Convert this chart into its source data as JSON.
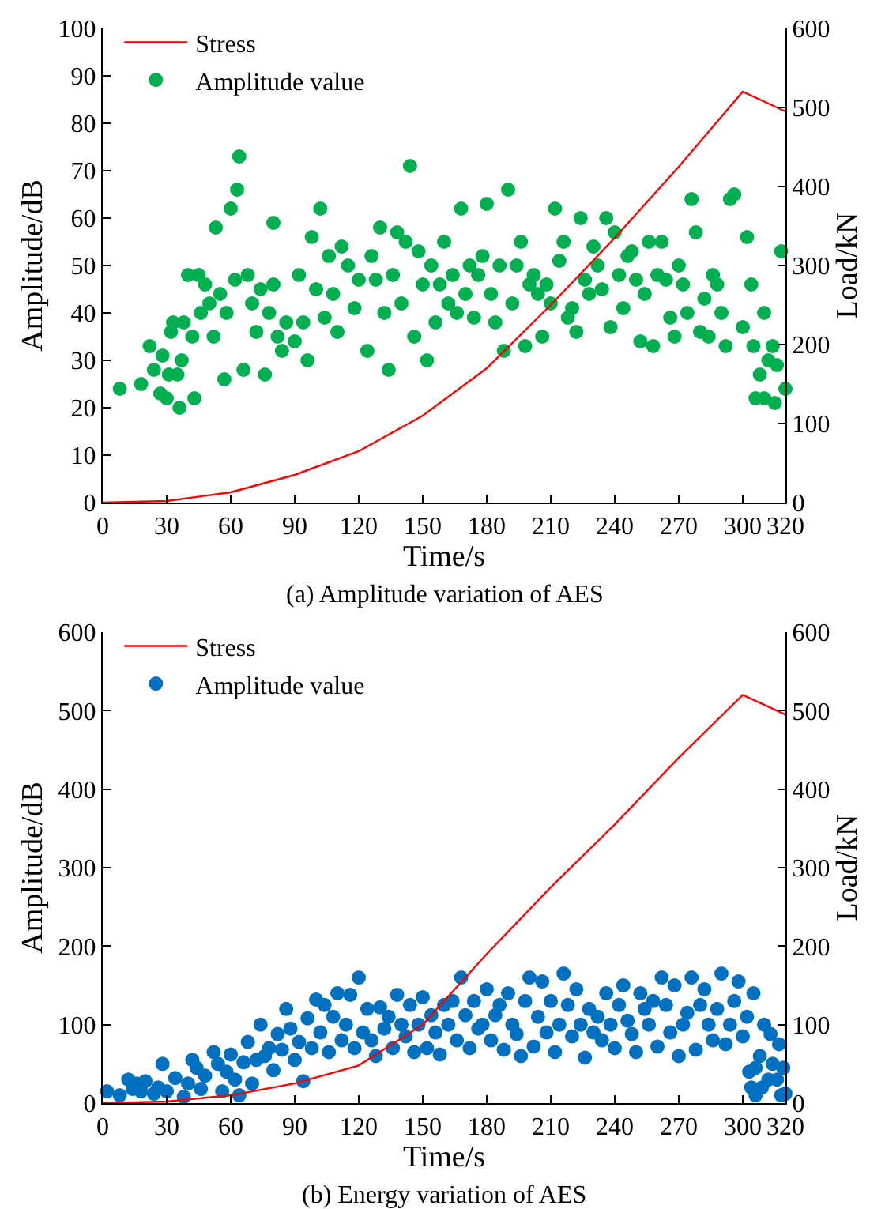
{
  "chart_data": [
    {
      "type": "scatter",
      "title": "(a) Amplitude variation of AES",
      "xlabel": "Time/s",
      "ylabel": "Amplitude/dB",
      "y2label": "Load/kN",
      "xlim": [
        0,
        320
      ],
      "xticks": [
        0,
        30,
        60,
        90,
        120,
        150,
        180,
        210,
        240,
        270,
        300,
        320
      ],
      "ylim": [
        0,
        100
      ],
      "yticks": [
        0,
        10,
        20,
        30,
        40,
        50,
        60,
        70,
        80,
        90,
        100
      ],
      "y2lim": [
        0,
        600
      ],
      "y2ticks": [
        0,
        100,
        200,
        300,
        400,
        500,
        600
      ],
      "legend": "top left",
      "series": [
        {
          "name": "Stress",
          "type": "line",
          "axis": "y2",
          "color": "#ff0000",
          "marker": "none",
          "line_style": "solid",
          "x": [
            0,
            30,
            60,
            90,
            120,
            150,
            180,
            210,
            240,
            270,
            300,
            320
          ],
          "values": [
            0,
            2,
            13,
            35,
            65,
            110,
            170,
            250,
            335,
            425,
            520,
            495
          ]
        },
        {
          "name": "Amplitude value",
          "color": "#00b050",
          "marker": "circle",
          "x": [
            8,
            18,
            22,
            24,
            27,
            28,
            30,
            31,
            32,
            33,
            35,
            36,
            37,
            38,
            40,
            42,
            43,
            45,
            46,
            48,
            50,
            52,
            53,
            55,
            57,
            58,
            60,
            62,
            63,
            64,
            66,
            68,
            70,
            72,
            74,
            76,
            78,
            80,
            80,
            82,
            84,
            86,
            90,
            92,
            94,
            96,
            98,
            100,
            102,
            104,
            106,
            108,
            110,
            112,
            115,
            118,
            120,
            124,
            126,
            128,
            130,
            132,
            134,
            136,
            138,
            140,
            142,
            144,
            146,
            148,
            150,
            152,
            154,
            156,
            158,
            160,
            162,
            164,
            166,
            168,
            170,
            172,
            174,
            176,
            178,
            180,
            182,
            184,
            186,
            188,
            190,
            192,
            194,
            196,
            198,
            200,
            202,
            204,
            206,
            208,
            210,
            212,
            214,
            216,
            218,
            220,
            222,
            224,
            226,
            228,
            230,
            232,
            234,
            236,
            238,
            240,
            242,
            244,
            246,
            248,
            250,
            252,
            254,
            256,
            258,
            260,
            262,
            264,
            266,
            268,
            270,
            272,
            274,
            276,
            278,
            280,
            282,
            284,
            286,
            288,
            290,
            292,
            294,
            296,
            300,
            302,
            304,
            305,
            306,
            308,
            310,
            310,
            312,
            314,
            315,
            316,
            318,
            320
          ],
          "values": [
            24,
            25,
            33,
            28,
            23,
            31,
            22,
            27,
            36,
            38,
            27,
            20,
            30,
            38,
            48,
            35,
            22,
            48,
            40,
            46,
            42,
            35,
            58,
            44,
            26,
            40,
            62,
            47,
            66,
            73,
            28,
            48,
            42,
            36,
            45,
            27,
            40,
            59,
            46,
            35,
            32,
            38,
            34,
            48,
            38,
            30,
            56,
            45,
            62,
            39,
            52,
            44,
            36,
            54,
            50,
            41,
            47,
            32,
            52,
            47,
            58,
            40,
            28,
            48,
            57,
            42,
            55,
            71,
            35,
            53,
            46,
            30,
            50,
            38,
            46,
            55,
            42,
            48,
            40,
            62,
            44,
            50,
            39,
            48,
            52,
            63,
            44,
            38,
            50,
            32,
            66,
            42,
            50,
            55,
            33,
            46,
            48,
            44,
            35,
            46,
            42,
            62,
            51,
            55,
            39,
            41,
            36,
            60,
            47,
            44,
            54,
            50,
            45,
            60,
            37,
            57,
            48,
            41,
            52,
            53,
            47,
            34,
            44,
            55,
            33,
            48,
            55,
            47,
            39,
            35,
            50,
            46,
            40,
            64,
            57,
            36,
            43,
            35,
            48,
            46,
            40,
            33,
            64,
            65,
            37,
            56,
            46,
            33,
            22,
            27,
            40,
            22,
            30,
            33,
            21,
            29,
            53,
            24
          ]
        }
      ]
    },
    {
      "type": "scatter",
      "title": "(b) Energy variation of AES",
      "xlabel": "Time/s",
      "ylabel": "Amplitude/dB",
      "y2label": "Load/kN",
      "xlim": [
        0,
        320
      ],
      "xticks": [
        0,
        30,
        60,
        90,
        120,
        150,
        180,
        210,
        240,
        270,
        300,
        320
      ],
      "ylim": [
        0,
        600
      ],
      "yticks": [
        0,
        100,
        200,
        300,
        400,
        500,
        600
      ],
      "y2lim": [
        0,
        600
      ],
      "y2ticks": [
        0,
        100,
        200,
        300,
        400,
        500,
        600
      ],
      "legend": "top left",
      "series": [
        {
          "name": "Stress",
          "type": "line",
          "axis": "y2",
          "color": "#ff0000",
          "marker": "none",
          "line_style": "solid",
          "x": [
            0,
            30,
            60,
            90,
            120,
            150,
            180,
            210,
            240,
            270,
            300,
            320
          ],
          "values": [
            0,
            2,
            10,
            25,
            48,
            100,
            190,
            275,
            355,
            440,
            520,
            495
          ]
        },
        {
          "name": "Amplitude value",
          "color": "#0070c0",
          "marker": "circle",
          "x": [
            2,
            8,
            12,
            14,
            16,
            18,
            20,
            24,
            26,
            28,
            30,
            34,
            38,
            40,
            42,
            44,
            46,
            48,
            52,
            54,
            56,
            58,
            60,
            62,
            64,
            66,
            68,
            70,
            72,
            74,
            76,
            78,
            80,
            82,
            84,
            86,
            88,
            90,
            92,
            94,
            96,
            98,
            100,
            102,
            104,
            106,
            108,
            110,
            112,
            114,
            116,
            118,
            120,
            122,
            124,
            126,
            128,
            130,
            132,
            134,
            136,
            138,
            140,
            142,
            144,
            146,
            148,
            150,
            152,
            154,
            156,
            158,
            160,
            162,
            164,
            166,
            168,
            170,
            172,
            174,
            176,
            178,
            180,
            182,
            184,
            186,
            188,
            190,
            192,
            194,
            196,
            198,
            200,
            202,
            204,
            206,
            208,
            210,
            212,
            214,
            216,
            218,
            220,
            222,
            224,
            226,
            228,
            230,
            232,
            234,
            236,
            238,
            240,
            242,
            244,
            246,
            248,
            250,
            252,
            254,
            256,
            258,
            260,
            262,
            264,
            266,
            268,
            270,
            272,
            274,
            276,
            278,
            280,
            282,
            284,
            286,
            288,
            290,
            292,
            294,
            296,
            298,
            300,
            302,
            303,
            304,
            305,
            306,
            306,
            308,
            309,
            310,
            312,
            313,
            314,
            316,
            317,
            318,
            319,
            320
          ],
          "values": [
            15,
            10,
            30,
            18,
            25,
            15,
            28,
            12,
            20,
            50,
            15,
            32,
            8,
            25,
            55,
            45,
            18,
            35,
            65,
            50,
            15,
            40,
            62,
            30,
            10,
            52,
            78,
            25,
            55,
            100,
            60,
            70,
            42,
            88,
            68,
            120,
            95,
            55,
            78,
            28,
            108,
            70,
            132,
            90,
            125,
            65,
            110,
            140,
            80,
            100,
            138,
            70,
            160,
            90,
            120,
            80,
            60,
            122,
            95,
            110,
            70,
            138,
            100,
            85,
            125,
            65,
            100,
            135,
            70,
            112,
            90,
            62,
            125,
            100,
            130,
            80,
            160,
            112,
            70,
            130,
            95,
            100,
            145,
            80,
            112,
            125,
            68,
            140,
            100,
            88,
            60,
            130,
            160,
            72,
            110,
            155,
            90,
            130,
            65,
            100,
            165,
            125,
            85,
            145,
            100,
            58,
            120,
            90,
            110,
            80,
            140,
            100,
            70,
            125,
            150,
            105,
            88,
            65,
            140,
            120,
            100,
            130,
            72,
            160,
            125,
            90,
            150,
            60,
            100,
            115,
            160,
            68,
            125,
            145,
            100,
            80,
            120,
            165,
            75,
            100,
            130,
            155,
            85,
            110,
            40,
            20,
            140,
            45,
            10,
            60,
            20,
            100,
            30,
            88,
            50,
            30,
            75,
            10,
            45,
            12
          ]
        }
      ]
    }
  ]
}
